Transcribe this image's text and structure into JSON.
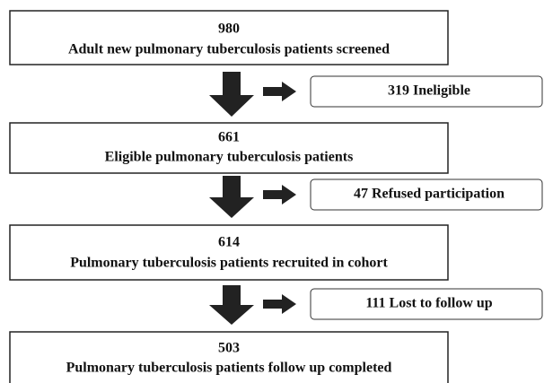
{
  "nodes": [
    {
      "count": "980",
      "label": "Adult new pulmonary tuberculosis patients screened"
    },
    {
      "count": "661",
      "label": "Eligible pulmonary tuberculosis patients"
    },
    {
      "count": "614",
      "label": "Pulmonary tuberculosis patients recruited in cohort"
    },
    {
      "count": "503",
      "label": "Pulmonary tuberculosis patients follow up completed"
    }
  ],
  "exclusions": [
    {
      "label": "319 Ineligible"
    },
    {
      "label": "47 Refused participation"
    },
    {
      "label": "111 Lost to follow up"
    }
  ]
}
